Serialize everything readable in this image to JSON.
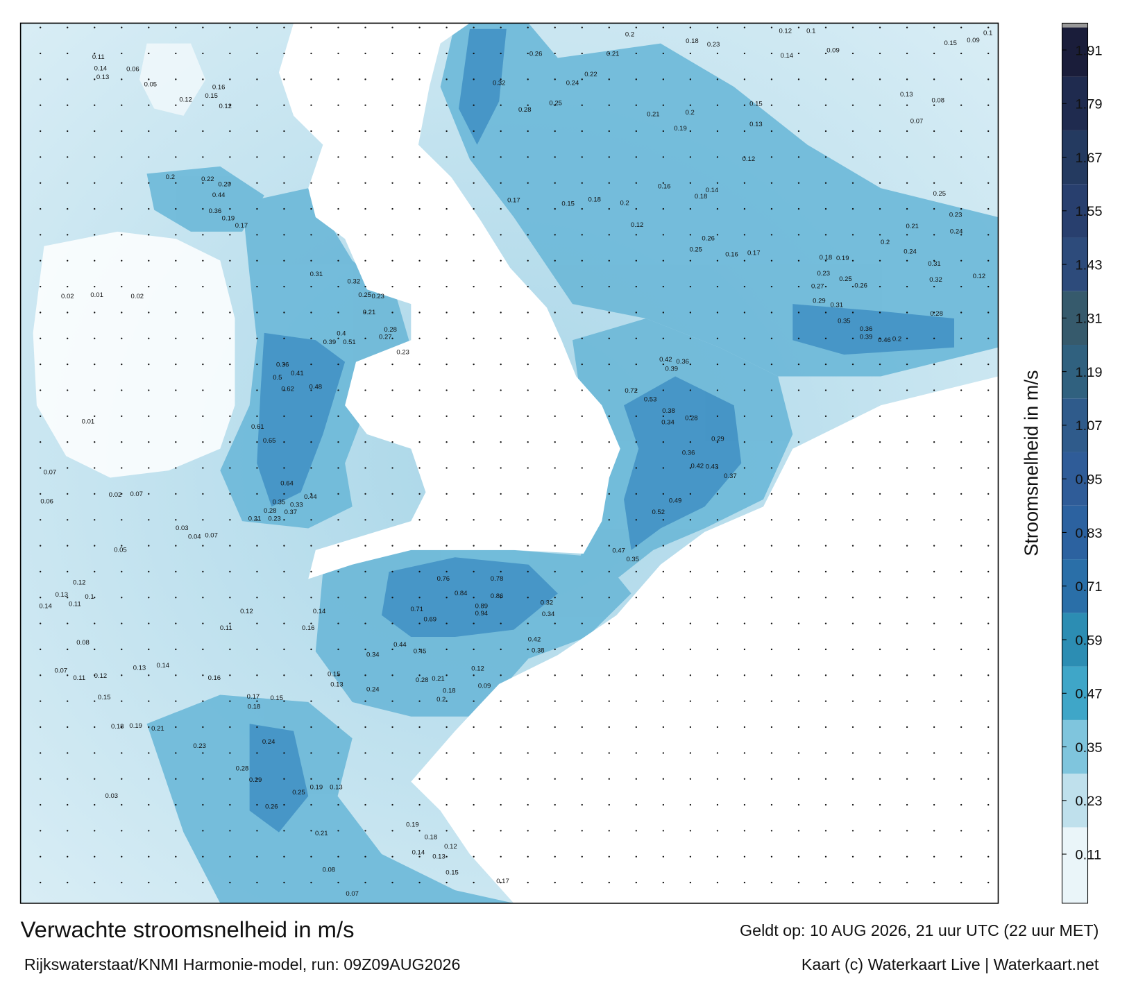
{
  "chart_data": {
    "type": "map",
    "title": "Verwachte stroomsnelheid in m/s",
    "subtitle": "Rijkswaterstaat/KNMI Harmonie-model, run: 09Z09AUG2026",
    "valid_time": "Geldt op: 10 AUG 2026, 21 uur UTC (22 uur MET)",
    "credit": "Kaart (c) Waterkaart Live | Waterkaart.net",
    "colorbar": {
      "label": "Stroomsnelheid in m/s",
      "lim": [
        0,
        1.97
      ],
      "ticks": [
        0.11,
        0.23,
        0.35,
        0.47,
        0.59,
        0.71,
        0.83,
        0.95,
        1.07,
        1.19,
        1.31,
        1.43,
        1.55,
        1.67,
        1.79,
        1.91
      ],
      "colors": [
        "#eaf5f9",
        "#bfe0ec",
        "#7fc5dd",
        "#3fa6c8",
        "#2c8db3",
        "#2a6fa8",
        "#2c62a0",
        "#2f5c98",
        "#2f5b8b",
        "#30617f",
        "#365a6c",
        "#2d4b7b",
        "#283f6e",
        "#243a60",
        "#1f2b4f",
        "#1a1d3a"
      ]
    },
    "map_labels": [
      0.26,
      0.21,
      0.2,
      0.18,
      0.23,
      0.12,
      0.1,
      0.14,
      0.09,
      0.32,
      0.28,
      0.25,
      0.24,
      0.22,
      0.21,
      0.2,
      0.19,
      0.15,
      0.13,
      0.12,
      0.16,
      0.18,
      0.14,
      0.17,
      0.15,
      0.18,
      0.2,
      0.12,
      0.26,
      0.25,
      0.16,
      0.17,
      0.18,
      0.19,
      0.23,
      0.25,
      0.26,
      0.27,
      0.29,
      0.31,
      0.35,
      0.36,
      0.39,
      0.46,
      0.2,
      0.42,
      0.36,
      0.39,
      0.72,
      0.53,
      0.38,
      0.34,
      0.28,
      0.29,
      0.36,
      0.42,
      0.43,
      0.37,
      0.49,
      0.52,
      0.47,
      0.35,
      0.76,
      0.78,
      0.84,
      0.86,
      0.89,
      0.94,
      0.71,
      0.69,
      0.32,
      0.34,
      0.44,
      0.45,
      0.34,
      0.42,
      0.38,
      0.24,
      0.15,
      0.13,
      0.12,
      0.09,
      0.28,
      0.21,
      0.18,
      0.2,
      0.62,
      0.65,
      0.64,
      0.61,
      0.5,
      0.36,
      0.41,
      0.48,
      0.4,
      0.51,
      0.39,
      0.44,
      0.35,
      0.33,
      0.28,
      0.37,
      0.21,
      0.23,
      0.24,
      0.28,
      0.29,
      0.26,
      0.25,
      0.19,
      0.13,
      0.21,
      0.16,
      0.17,
      0.18,
      0.15,
      0.14,
      0.13,
      0.11,
      0.12,
      0.14,
      0.16,
      0.15,
      0.18,
      0.19,
      0.21,
      0.23,
      0.03,
      0.08,
      0.07,
      0.15,
      0.17,
      0.14,
      0.13,
      0.12,
      0.18,
      0.19,
      0.12,
      0.13,
      0.14,
      0.11,
      0.1,
      0.08,
      0.07,
      0.11,
      0.12,
      0.05,
      0.03,
      0.04,
      0.07,
      0.02,
      0.07,
      0.07,
      0.06,
      0.01,
      0.02,
      0.01,
      0.02,
      0.06,
      0.05,
      0.11,
      0.14,
      0.13,
      0.12,
      0.16,
      0.15,
      0.12,
      0.2,
      0.22,
      0.29,
      0.44,
      0.36,
      0.19,
      0.17,
      0.31,
      0.32,
      0.25,
      0.23,
      0.28,
      0.27,
      0.23,
      0.21,
      0.15,
      0.09,
      0.1,
      0.07,
      0.08,
      0.13,
      0.25,
      0.23,
      0.24,
      0.31,
      0.32,
      0.28,
      0.24,
      0.21,
      0.2,
      0.12
    ]
  }
}
